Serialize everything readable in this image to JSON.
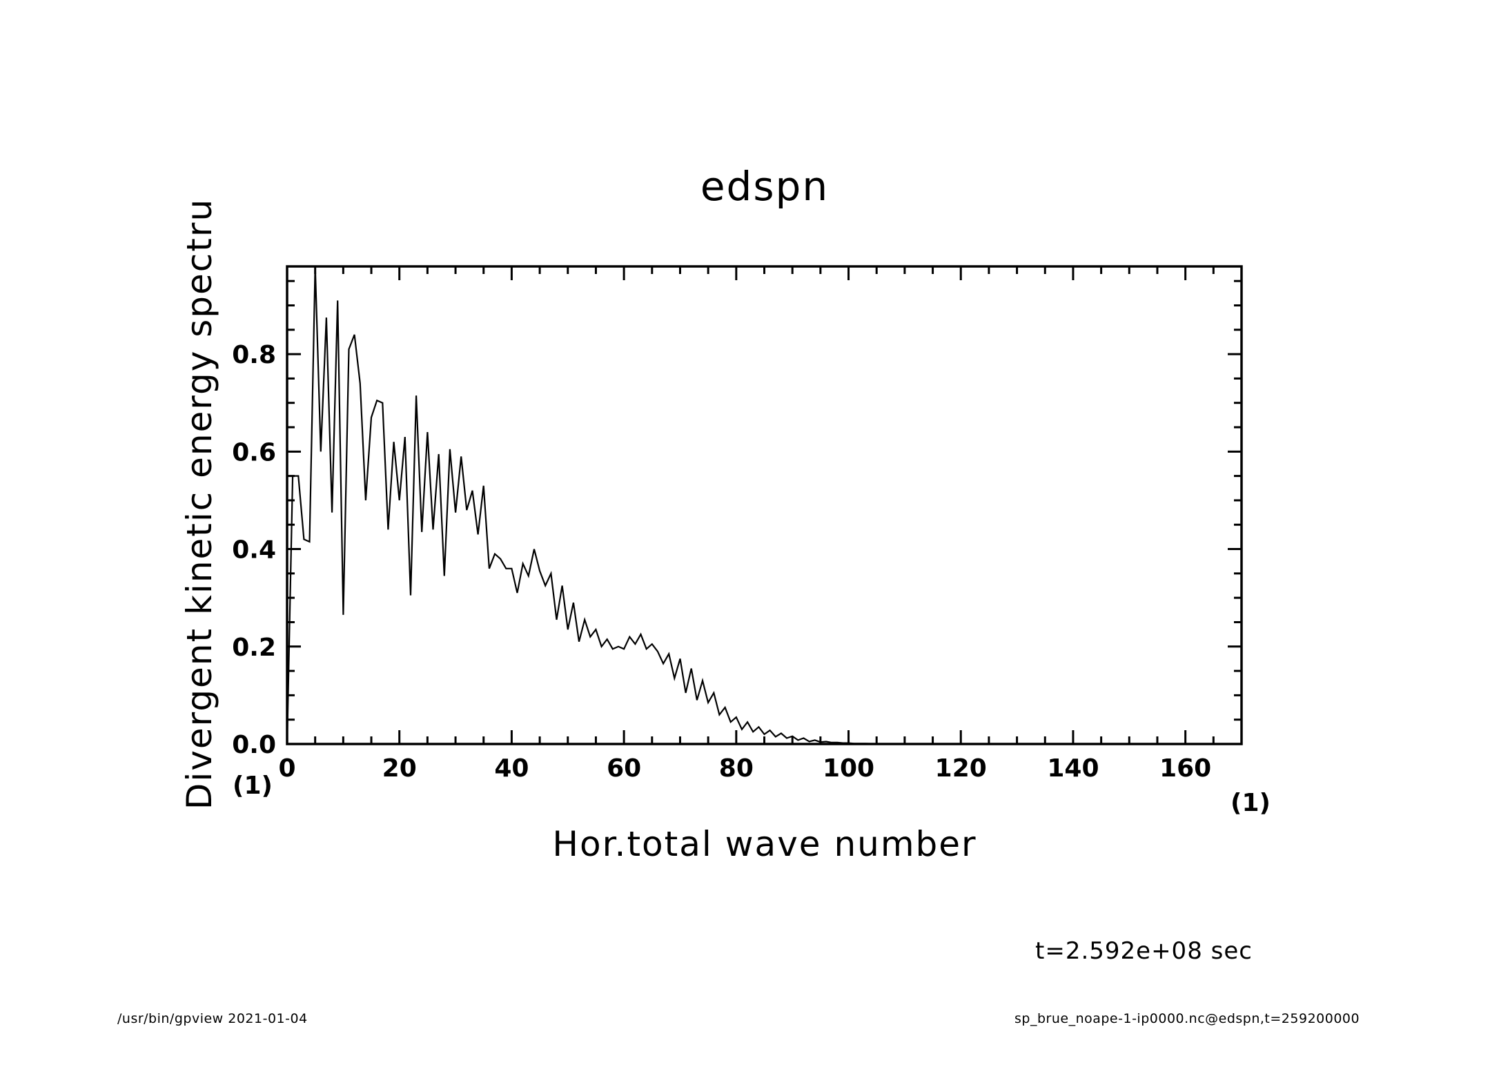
{
  "chart_data": {
    "type": "line",
    "title": "edspn",
    "xlabel": "Hor.total wave number",
    "ylabel": "Divergent kinetic energy spectru",
    "x_unit": "(1)",
    "y_unit": "(1)",
    "xlim": [
      0,
      170
    ],
    "ylim": [
      0,
      0.98
    ],
    "xticks": [
      "0",
      "20",
      "40",
      "60",
      "80",
      "100",
      "120",
      "140",
      "160"
    ],
    "yticks": [
      "0.0",
      "0.2",
      "0.4",
      "0.6",
      "0.8"
    ],
    "series": [
      {
        "x": [
          0,
          1,
          2,
          3,
          4,
          5,
          6,
          7,
          8,
          9,
          10,
          11,
          12,
          13,
          14,
          15,
          16,
          17,
          18,
          19,
          20,
          21,
          22,
          23,
          24,
          25,
          26,
          27,
          28,
          29,
          30,
          31,
          32,
          33,
          34,
          35,
          36,
          37,
          38,
          39,
          40,
          41,
          42,
          43,
          44,
          45,
          46,
          47,
          48,
          49,
          50,
          51,
          52,
          53,
          54,
          55,
          56,
          57,
          58,
          59,
          60,
          61,
          62,
          63,
          64,
          65,
          66,
          67,
          68,
          69,
          70,
          71,
          72,
          73,
          74,
          75,
          76,
          77,
          78,
          79,
          80,
          81,
          82,
          83,
          84,
          85,
          86,
          87,
          88,
          89,
          90,
          91,
          92,
          93,
          94,
          95,
          96,
          97,
          98,
          99,
          100,
          101,
          102,
          103,
          104,
          105,
          106,
          107,
          108,
          109,
          110,
          115,
          120,
          130,
          140,
          150,
          160,
          170
        ],
        "y": [
          0.0,
          0.55,
          0.55,
          0.42,
          0.415,
          0.98,
          0.6,
          0.875,
          0.475,
          0.91,
          0.265,
          0.81,
          0.84,
          0.74,
          0.5,
          0.67,
          0.705,
          0.7,
          0.44,
          0.62,
          0.5,
          0.63,
          0.305,
          0.715,
          0.435,
          0.64,
          0.44,
          0.595,
          0.345,
          0.605,
          0.475,
          0.59,
          0.48,
          0.52,
          0.43,
          0.53,
          0.36,
          0.39,
          0.38,
          0.36,
          0.36,
          0.31,
          0.37,
          0.345,
          0.4,
          0.355,
          0.325,
          0.35,
          0.255,
          0.325,
          0.235,
          0.29,
          0.21,
          0.255,
          0.22,
          0.235,
          0.2,
          0.215,
          0.195,
          0.2,
          0.195,
          0.22,
          0.205,
          0.225,
          0.195,
          0.205,
          0.19,
          0.165,
          0.185,
          0.135,
          0.175,
          0.105,
          0.155,
          0.09,
          0.13,
          0.085,
          0.105,
          0.06,
          0.075,
          0.045,
          0.055,
          0.03,
          0.045,
          0.025,
          0.035,
          0.02,
          0.028,
          0.015,
          0.022,
          0.012,
          0.016,
          0.008,
          0.012,
          0.005,
          0.008,
          0.004,
          0.005,
          0.003,
          0.003,
          0.002,
          0.002,
          0.001,
          0.001,
          0.001,
          0.0005,
          0.0005,
          0.0003,
          0.0002,
          0.0001,
          0.0001,
          0.0,
          0.0,
          0.0,
          0.0,
          0.0,
          0.0,
          0.0,
          0.0
        ]
      }
    ],
    "grid": false,
    "legend": "none"
  },
  "annotations": {
    "time": "t=2.592e+08 sec",
    "footer_left": "/usr/bin/gpview   2021-01-04",
    "footer_right": "sp_brue_noape-1-ip0000.nc@edspn,t=259200000"
  }
}
